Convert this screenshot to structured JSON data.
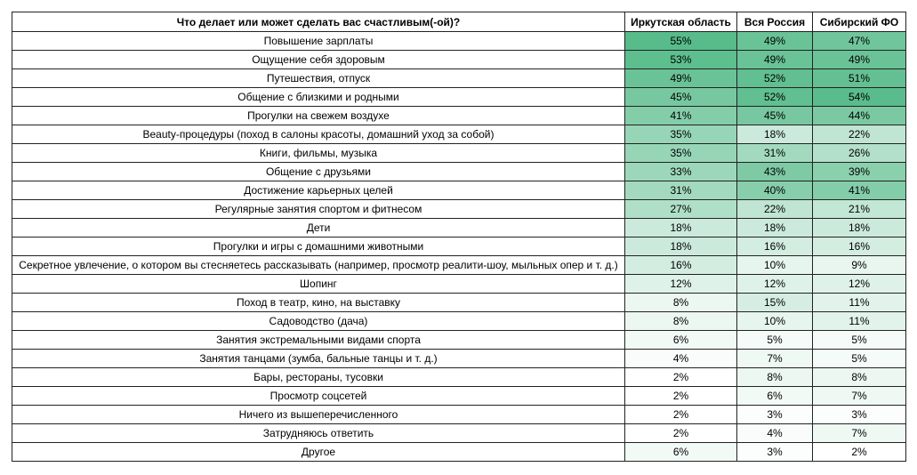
{
  "chart_data": {
    "type": "table",
    "color_scale": {
      "min_color": "#ffffff",
      "max_color": "#57bb8a"
    },
    "headers": [
      "Что делает или может сделать вас счастливым(-ой)?",
      "Иркутская область",
      "Вся Россия",
      "Сибирский ФО"
    ],
    "rows": [
      {
        "label": "Повышение зарплаты",
        "values": [
          55,
          49,
          47
        ]
      },
      {
        "label": "Ощущение себя здоровым",
        "values": [
          53,
          49,
          49
        ]
      },
      {
        "label": "Путешествия, отпуск",
        "values": [
          49,
          52,
          51
        ]
      },
      {
        "label": "Общение с близкими и родными",
        "values": [
          45,
          52,
          54
        ]
      },
      {
        "label": "Прогулки на свежем воздухе",
        "values": [
          41,
          45,
          44
        ]
      },
      {
        "label": "Beauty-процедуры (поход в салоны красоты, домашний уход за собой)",
        "values": [
          35,
          18,
          22
        ]
      },
      {
        "label": "Книги, фильмы, музыка",
        "values": [
          35,
          31,
          26
        ]
      },
      {
        "label": "Общение с друзьями",
        "values": [
          33,
          43,
          39
        ]
      },
      {
        "label": "Достижение карьерных целей",
        "values": [
          31,
          40,
          41
        ]
      },
      {
        "label": "Регулярные занятия спортом и фитнесом",
        "values": [
          27,
          22,
          21
        ]
      },
      {
        "label": "Дети",
        "values": [
          18,
          18,
          18
        ]
      },
      {
        "label": "Прогулки и игры с домашними животными",
        "values": [
          18,
          16,
          16
        ]
      },
      {
        "label": "Секретное увлечение, о котором вы стесняетесь рассказывать (например, просмотр реалити-шоу, мыльных опер и т. д.)",
        "values": [
          16,
          10,
          9
        ]
      },
      {
        "label": "Шопинг",
        "values": [
          12,
          12,
          12
        ]
      },
      {
        "label": "Поход в театр, кино, на выставку",
        "values": [
          8,
          15,
          11
        ]
      },
      {
        "label": "Садоводство (дача)",
        "values": [
          8,
          10,
          11
        ]
      },
      {
        "label": "Занятия экстремальными видами спорта",
        "values": [
          6,
          5,
          5
        ]
      },
      {
        "label": "Занятия танцами (зумба, бальные танцы и т. д.)",
        "values": [
          4,
          7,
          5
        ]
      },
      {
        "label": "Бары, рестораны, тусовки",
        "values": [
          2,
          8,
          8
        ]
      },
      {
        "label": "Просмотр соцсетей",
        "values": [
          2,
          6,
          7
        ]
      },
      {
        "label": "Ничего из вышеперечисленного",
        "values": [
          2,
          3,
          3
        ]
      },
      {
        "label": "Затрудняюсь ответить",
        "values": [
          2,
          4,
          7
        ]
      },
      {
        "label": "Другое",
        "values": [
          6,
          3,
          2
        ]
      }
    ],
    "unit": "%"
  }
}
